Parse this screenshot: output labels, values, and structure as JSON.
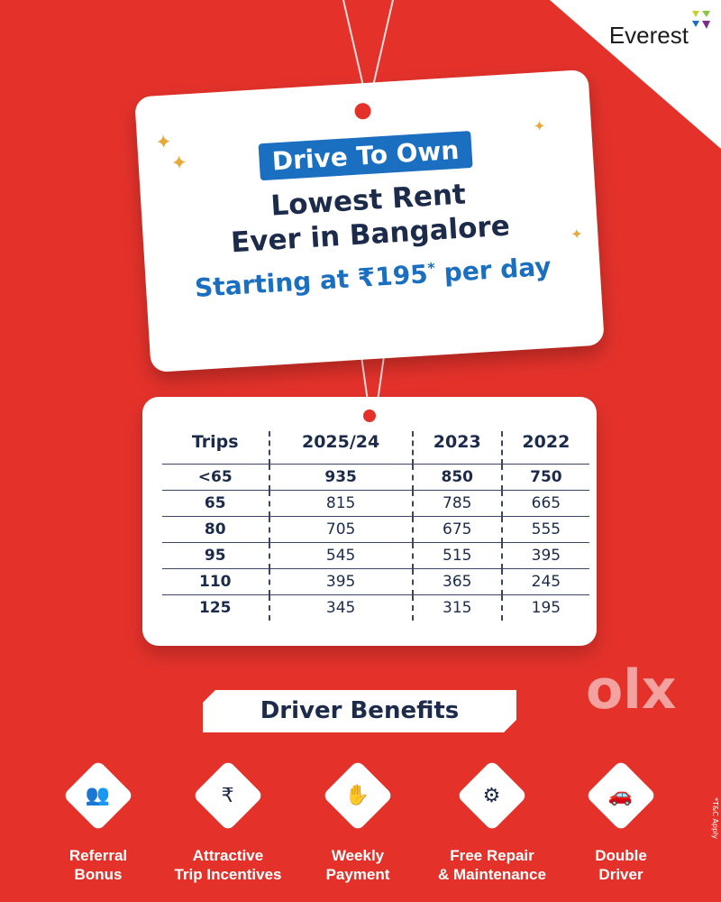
{
  "brand": {
    "name": "Everest"
  },
  "promo": {
    "tag": "Drive To Own",
    "headline_line1": "Lowest Rent",
    "headline_line2": "Ever in Bangalore",
    "price_prefix": "Starting at ₹195",
    "price_mark": "*",
    "price_suffix": " per day"
  },
  "table": {
    "headers": [
      "Trips",
      "2025/24",
      "2023",
      "2022"
    ],
    "rows": [
      [
        "<65",
        "935",
        "850",
        "750"
      ],
      [
        "65",
        "815",
        "785",
        "665"
      ],
      [
        "80",
        "705",
        "675",
        "555"
      ],
      [
        "95",
        "545",
        "515",
        "395"
      ],
      [
        "110",
        "395",
        "365",
        "245"
      ],
      [
        "125",
        "345",
        "315",
        "195"
      ]
    ]
  },
  "benefits": {
    "title": "Driver Benefits",
    "items": [
      {
        "label1": "Referral",
        "label2": "Bonus",
        "icon": "referral-icon"
      },
      {
        "label1": "Attractive",
        "label2": "Trip Incentives",
        "icon": "rupee-hands-icon"
      },
      {
        "label1": "Weekly",
        "label2": "Payment",
        "icon": "payment-icon"
      },
      {
        "label1": "Free Repair",
        "label2": "& Maintenance",
        "icon": "tools-icon"
      },
      {
        "label1": "Double",
        "label2": "Driver",
        "icon": "two-drivers-icon"
      }
    ]
  },
  "footnote": "*T&C Apply",
  "watermark": "olx",
  "colors": {
    "background": "#e4322b",
    "accent": "#1a6fc0",
    "text": "#1c2b4a"
  }
}
